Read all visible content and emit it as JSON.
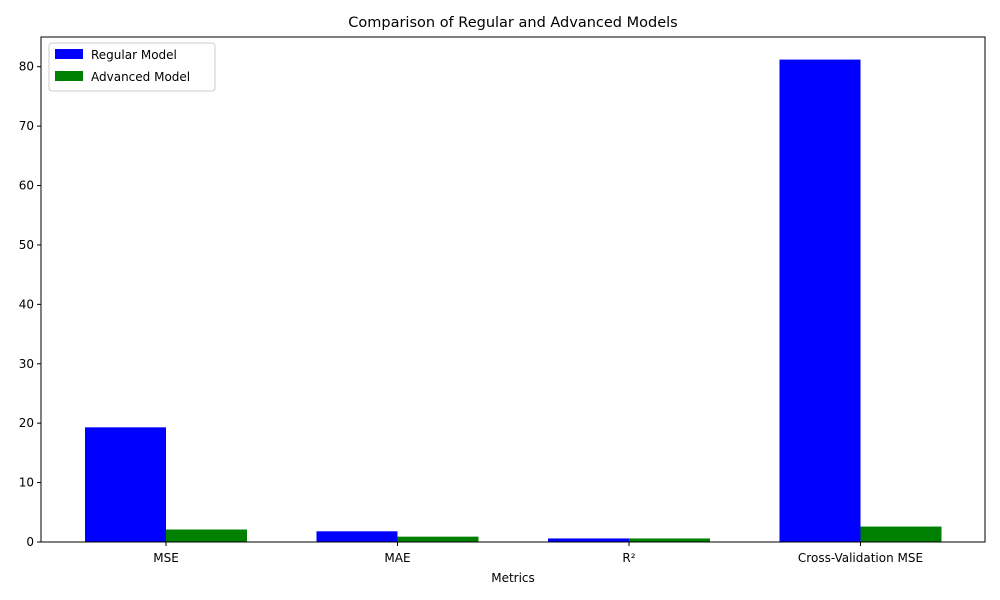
{
  "chart_data": {
    "type": "bar",
    "title": "Comparison of Regular and Advanced Models",
    "xlabel": "Metrics",
    "ylabel": "",
    "categories": [
      "MSE",
      "MAE",
      "R²",
      "Cross-Validation MSE"
    ],
    "series": [
      {
        "name": "Regular Model",
        "color": "#0000ff",
        "values": [
          19.3,
          1.8,
          0.6,
          81.2
        ]
      },
      {
        "name": "Advanced Model",
        "color": "#008000",
        "values": [
          2.1,
          0.9,
          0.6,
          2.6
        ]
      }
    ],
    "ylim": [
      0,
      85
    ],
    "yticks": [
      0,
      10,
      20,
      30,
      40,
      50,
      60,
      70,
      80
    ],
    "grid": false,
    "legend_position": "top-left"
  }
}
